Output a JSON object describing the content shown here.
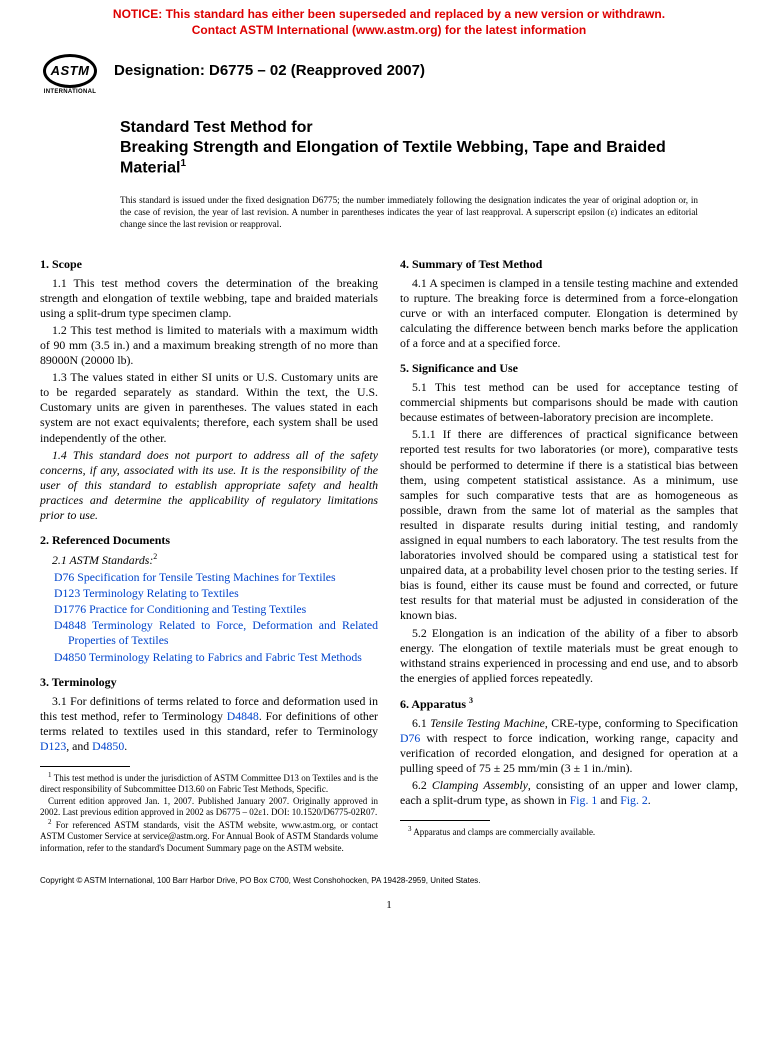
{
  "notice": {
    "line1": "NOTICE: This standard has either been superseded and replaced by a new version or withdrawn.",
    "line2": "Contact ASTM International (www.astm.org) for the latest information"
  },
  "logo": {
    "text": "ASTM",
    "sub": "INTERNATIONAL"
  },
  "designation": "Designation: D6775 – 02 (Reapproved 2007)",
  "title": {
    "pre": "Standard Test Method for",
    "main": "Breaking Strength and Elongation of Textile Webbing, Tape and Braided Material",
    "sup": "1"
  },
  "issued": "This standard is issued under the fixed designation D6775; the number immediately following the designation indicates the year of original adoption or, in the case of revision, the year of last revision. A number in parentheses indicates the year of last reapproval. A superscript epsilon (ε) indicates an editorial change since the last revision or reapproval.",
  "s1": {
    "head": "1. Scope",
    "p11": "1.1 This test method covers the determination of the breaking strength and elongation of textile webbing, tape and braided materials using a split-drum type specimen clamp.",
    "p12": "1.2 This test method is limited to materials with a maximum width of 90 mm (3.5 in.) and a maximum breaking strength of no more than 89000N (20000 lb).",
    "p13": "1.3 The values stated in either SI units or U.S. Customary units are to be regarded separately as standard. Within the text, the U.S. Customary units are given in parentheses. The values stated in each system are not exact equivalents; therefore, each system shall be used independently of the other.",
    "p14": "1.4 This standard does not purport to address all of the safety concerns, if any, associated with its use. It is the responsibility of the user of this standard to establish appropriate safety and health practices and determine the applicability of regulatory limitations prior to use."
  },
  "s2": {
    "head": "2. Referenced Documents",
    "sub": "2.1 ASTM Standards:",
    "sup": "2",
    "r1": {
      "id": "D76",
      "title": " Specification for Tensile Testing Machines for Textiles"
    },
    "r2": {
      "id": "D123",
      "title": " Terminology Relating to Textiles"
    },
    "r3": {
      "id": "D1776",
      "title": " Practice for Conditioning and Testing Textiles"
    },
    "r4": {
      "id": "D4848",
      "title": " Terminology Related to Force, Deformation and Related Properties of Textiles"
    },
    "r5": {
      "id": "D4850",
      "title": " Terminology Relating to Fabrics and Fabric Test Methods"
    }
  },
  "s3": {
    "head": "3. Terminology",
    "p31a": "3.1 For definitions of terms related to force and deformation used in this test method, refer to Terminology ",
    "p31link1": "D4848",
    "p31b": ". For definitions of other terms related to textiles used in this standard, refer to Terminology ",
    "p31link2": "D123",
    "p31c": ", and ",
    "p31link3": "D4850",
    "p31d": "."
  },
  "s4": {
    "head": "4. Summary of Test Method",
    "p41": "4.1 A specimen is clamped in a tensile testing machine and extended to rupture. The breaking force is determined from a force-elongation curve or with an interfaced computer. Elongation is determined by calculating the difference between bench marks before the application of a force and at a specified force."
  },
  "s5": {
    "head": "5. Significance and Use",
    "p51": "5.1 This test method can be used for acceptance testing of commercial shipments but comparisons should be made with caution because estimates of between-laboratory precision are incomplete.",
    "p511": "5.1.1 If there are differences of practical significance between reported test results for two laboratories (or more), comparative tests should be performed to determine if there is a statistical bias between them, using competent statistical assistance. As a minimum, use samples for such comparative tests that are as homogeneous as possible, drawn from the same lot of material as the samples that resulted in disparate results during initial testing, and randomly assigned in equal numbers to each laboratory. The test results from the laboratories involved should be compared using a statistical test for unpaired data, at a probability level chosen prior to the testing series. If bias is found, either its cause must be found and corrected, or future test results for that material must be adjusted in consideration of the known bias.",
    "p52": "5.2 Elongation is an indication of the ability of a fiber to absorb energy. The elongation of textile materials must be great enough to withstand strains experienced in processing and end use, and to absorb the energies of applied forces repeatedly."
  },
  "s6": {
    "head": "6. Apparatus ",
    "headsup": "3",
    "p61a": "6.1 ",
    "p61i": "Tensile Testing Machine",
    "p61b": ", CRE-type, conforming to Specification ",
    "p61link": "D76",
    "p61c": " with respect to force indication, working range, capacity and verification of recorded elongation, and designed for operation at a pulling speed of 75 ± 25 mm/min (3 ± 1 in./min).",
    "p62a": "6.2 ",
    "p62i": "Clamping Assembly",
    "p62b": ", consisting of an upper and lower clamp, each a split-drum type, as shown in ",
    "p62link1": "Fig. 1",
    "p62c": " and ",
    "p62link2": "Fig. 2",
    "p62d": "."
  },
  "footnotes": {
    "f1": "This test method is under the jurisdiction of ASTM Committee D13 on Textiles and is the direct responsibility of Subcommittee D13.60 on Fabric Test Methods, Specific.",
    "f1b": "Current edition approved Jan. 1, 2007. Published January 2007. Originally approved in 2002. Last previous edition approved in 2002 as D6775 – 02ε1. DOI: 10.1520/D6775-02R07.",
    "f2": "For referenced ASTM standards, visit the ASTM website, www.astm.org, or contact ASTM Customer Service at service@astm.org. For Annual Book of ASTM Standards volume information, refer to the standard's Document Summary page on the ASTM website.",
    "f3": "Apparatus and clamps are commercially available."
  },
  "copyright": "Copyright © ASTM International, 100 Barr Harbor Drive, PO Box C700, West Conshohocken, PA 19428-2959, United States.",
  "pagenum": "1",
  "colors": {
    "notice": "#dd0000",
    "link": "#0044cc",
    "text": "#000000"
  }
}
